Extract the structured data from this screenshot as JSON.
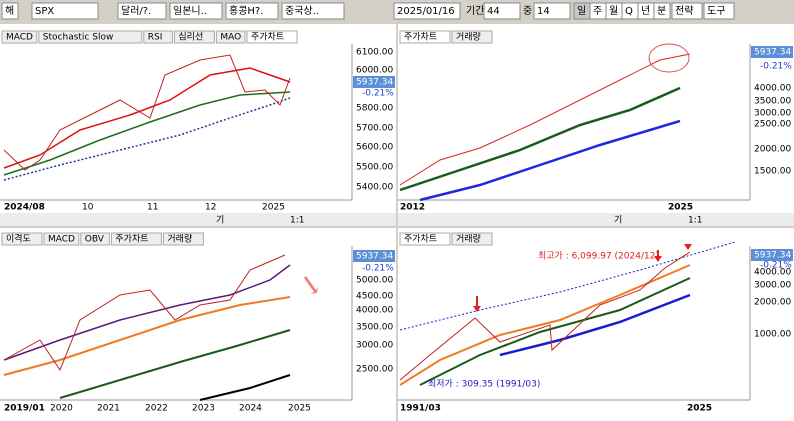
{
  "toolbar": {
    "items": [
      "해",
      "SPX",
      "달러/?.",
      "일본니..",
      "홍콩H?.",
      "중국상..",
      "2025/01/16",
      "기간",
      "44",
      "중",
      "14",
      "일",
      "주",
      "월",
      "Q",
      "년",
      "분",
      "전략",
      "도구"
    ]
  },
  "tool_row": [
    "기",
    "1:1"
  ],
  "panes": [
    {
      "tabs": [
        "MACD",
        "Stochastic Slow",
        "RSI",
        "심리선",
        "MAO",
        "주가차트"
      ],
      "price": "5937.34",
      "change": "-0.21%",
      "y_labels": [
        "6100.00",
        "6000.00",
        "5800.00",
        "5700.00",
        "5600.00",
        "5500.00",
        "5400.00"
      ],
      "x_labels": [
        "2024/08",
        "10",
        "11",
        "12",
        "2025"
      ]
    },
    {
      "tabs": [
        "주가차트",
        "거래량"
      ],
      "price": "5937.34",
      "change": "-0.21%",
      "y_labels": [
        "4000.00",
        "3500.00",
        "3000.00",
        "2500.00",
        "2000.00",
        "1500.00"
      ],
      "x_labels": [
        "2012",
        "2025"
      ]
    },
    {
      "tabs": [
        "이격도",
        "MACD",
        "OBV",
        "주가차트",
        "거래량"
      ],
      "price": "5937.34",
      "change": "-0.21%",
      "y_labels": [
        "5000.00",
        "4500.00",
        "4000.00",
        "3500.00",
        "3000.00",
        "2500.00"
      ],
      "x_labels": [
        "2019/01",
        "2020",
        "2021",
        "2022",
        "2023",
        "2024",
        "2025"
      ]
    },
    {
      "tabs": [
        "주가차트",
        "거래량"
      ],
      "price": "5937.34",
      "change": "-0.21%",
      "y_labels": [
        "4000.00",
        "3000.00",
        "2000.00",
        "1000.00"
      ],
      "x_labels": [
        "1991/03",
        "2025"
      ],
      "annotations": [
        "최고가 : 6,099.97 (2024/12)",
        "최저가 : 309.35 (1991/03)"
      ]
    }
  ]
}
